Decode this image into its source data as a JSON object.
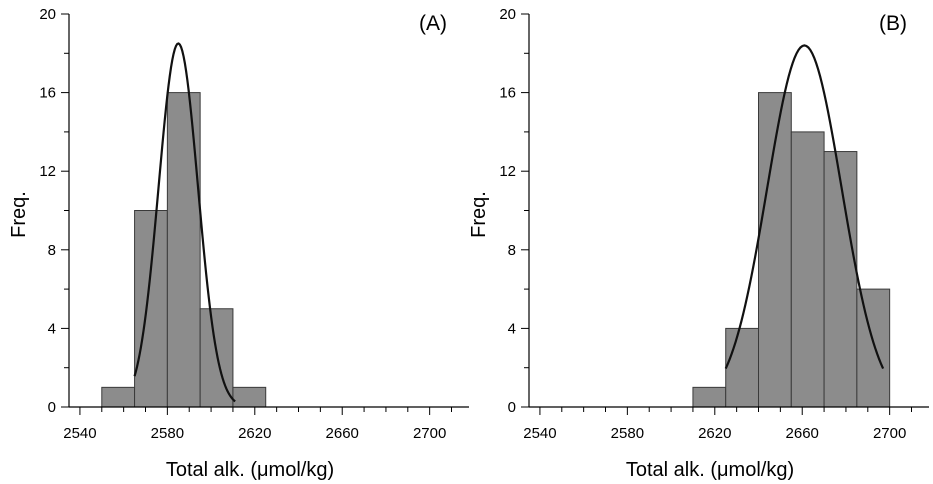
{
  "chart_data": [
    {
      "type": "bar",
      "panel_label": "(A)",
      "xlabel": "Total alk. (μmol/kg)",
      "ylabel": "Freq.",
      "xlim": [
        2535,
        2718
      ],
      "ylim": [
        0,
        20
      ],
      "xticks": [
        2540,
        2580,
        2620,
        2660,
        2700
      ],
      "yticks": [
        0,
        4,
        8,
        12,
        16,
        20
      ],
      "bin_width": 15,
      "bins": [
        {
          "start": 2550,
          "end": 2565,
          "value": 1
        },
        {
          "start": 2565,
          "end": 2580,
          "value": 10
        },
        {
          "start": 2580,
          "end": 2595,
          "value": 16
        },
        {
          "start": 2595,
          "end": 2610,
          "value": 5
        },
        {
          "start": 2610,
          "end": 2625,
          "value": 1
        }
      ],
      "fit_curve": {
        "type": "normal",
        "mean": 2585,
        "sigma": 9,
        "peak": 18.5,
        "x_range": [
          2565,
          2611
        ]
      },
      "bar_color": "#8c8c8c",
      "grid": false
    },
    {
      "type": "bar",
      "panel_label": "(B)",
      "xlabel": "Total alk. (μmol/kg)",
      "ylabel": "Freq.",
      "xlim": [
        2535,
        2718
      ],
      "ylim": [
        0,
        20
      ],
      "xticks": [
        2540,
        2580,
        2620,
        2660,
        2700
      ],
      "yticks": [
        0,
        4,
        8,
        12,
        16,
        20
      ],
      "bin_width": 15,
      "bins": [
        {
          "start": 2610,
          "end": 2625,
          "value": 1
        },
        {
          "start": 2625,
          "end": 2640,
          "value": 4
        },
        {
          "start": 2640,
          "end": 2655,
          "value": 16
        },
        {
          "start": 2655,
          "end": 2670,
          "value": 14
        },
        {
          "start": 2670,
          "end": 2685,
          "value": 13
        },
        {
          "start": 2685,
          "end": 2700,
          "value": 6
        }
      ],
      "fit_curve": {
        "type": "normal",
        "mean": 2661,
        "sigma": 17,
        "peak": 18.4,
        "x_range": [
          2625,
          2697
        ]
      },
      "bar_color": "#8c8c8c",
      "grid": false
    }
  ]
}
